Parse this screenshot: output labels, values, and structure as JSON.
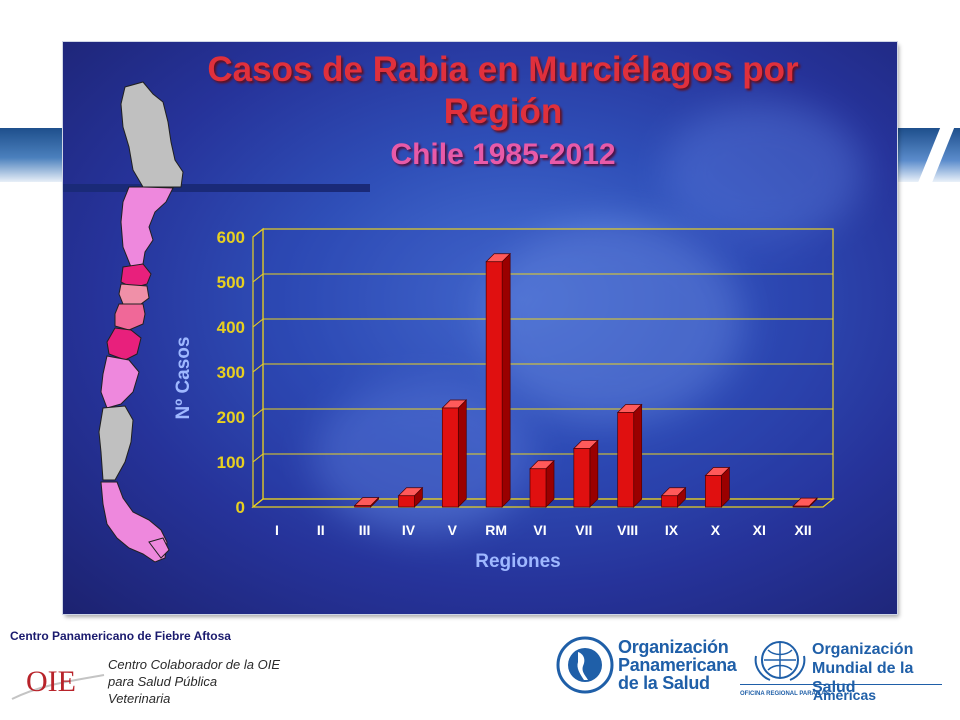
{
  "slide": {
    "title_line1": "Casos de Rabia en Murciélagos por",
    "title_line2": "Región",
    "subtitle": "Chile 1985-2012"
  },
  "chart_data": {
    "type": "bar",
    "categories": [
      "I",
      "II",
      "III",
      "IV",
      "V",
      "RM",
      "VI",
      "VII",
      "VIII",
      "IX",
      "X",
      "XI",
      "XII"
    ],
    "values": [
      0,
      0,
      3,
      25,
      220,
      545,
      85,
      130,
      210,
      25,
      70,
      0,
      2
    ],
    "xlabel": "Regiones",
    "ylabel": "Nº Casos",
    "ylim": [
      0,
      600
    ],
    "yticks": [
      0,
      100,
      200,
      300,
      400,
      500,
      600
    ],
    "grid": true,
    "bar_color": "#e01010",
    "axis_text_color": "#e8d020"
  },
  "footer": {
    "org_name": "Centro Panamericano de Fiebre Aftosa",
    "oie_logo": "OIE",
    "oie_line1": "Centro Colaborador de la OIE",
    "oie_line2": "para Salud Pública",
    "oie_line3": "Veterinaria",
    "ops_line1": "Organización",
    "ops_line2": "Panamericana",
    "ops_line3": "de la Salud",
    "oms_line1": "Organización",
    "oms_line2": "Mundial de la Salud",
    "oms_office": "OFICINA REGIONAL PARA LAS",
    "oms_americas": "Américas"
  },
  "colors": {
    "title": "#e0303c",
    "subtitle": "#e85aa8",
    "brand_blue": "#1f5fa8"
  }
}
